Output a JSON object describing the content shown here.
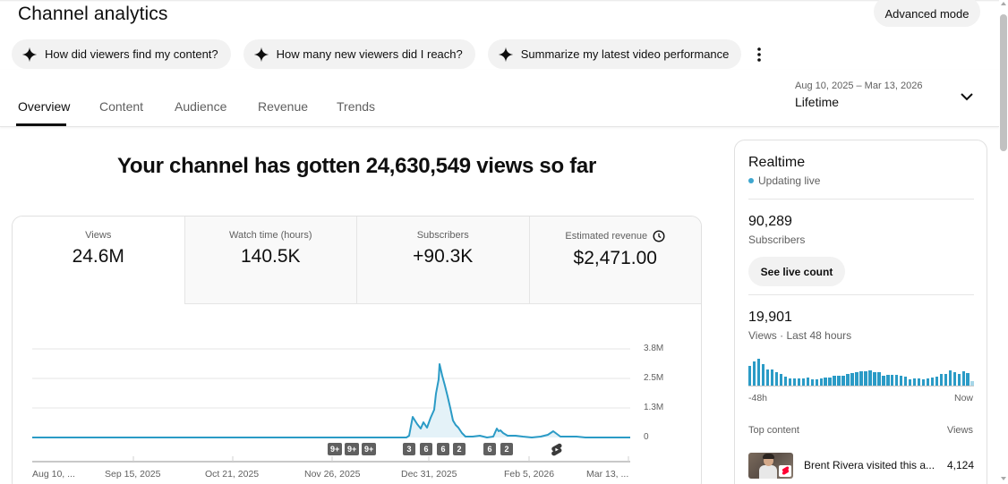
{
  "header": {
    "title": "Channel analytics",
    "advanced_mode_label": "Advanced mode"
  },
  "chips": [
    {
      "icon": "sparkle-icon",
      "label": "How did viewers find my content?"
    },
    {
      "icon": "sparkle-icon",
      "label": "How many new viewers did I reach?"
    },
    {
      "icon": "sparkle-icon",
      "label": "Summarize my latest video performance"
    }
  ],
  "more_icon": "more-vert-icon",
  "tabs": [
    {
      "label": "Overview",
      "active": true
    },
    {
      "label": "Content",
      "active": false
    },
    {
      "label": "Audience",
      "active": false
    },
    {
      "label": "Revenue",
      "active": false
    },
    {
      "label": "Trends",
      "active": false
    }
  ],
  "date_range": {
    "range": "Aug 10, 2025 – Mar 13, 2026",
    "period": "Lifetime"
  },
  "headline": "Your channel has gotten 24,630,549 views so far",
  "metrics": [
    {
      "label": "Views",
      "value": "24.6M",
      "selected": true
    },
    {
      "label": "Watch time (hours)",
      "value": "140.5K",
      "selected": false
    },
    {
      "label": "Subscribers",
      "value": "+90.3K",
      "selected": false
    },
    {
      "label": "Estimated revenue",
      "value": "$2,471.00",
      "selected": false,
      "icon": "clock-icon"
    }
  ],
  "chart_data": {
    "type": "area",
    "title": "Views",
    "xlabel": "",
    "ylabel": "Views",
    "y_ticks": [
      "0",
      "1.3M",
      "2.5M",
      "3.8M"
    ],
    "ylim": [
      0,
      3800000
    ],
    "x_tick_labels": [
      "Aug 10, ...",
      "Sep 15, 2025",
      "Oct 21, 2025",
      "Nov 26, 2025",
      "Dec 31, 2025",
      "Feb 5, 2026",
      "Mar 13, ..."
    ],
    "grid": true,
    "legend": "none",
    "color": "#3ea6cf",
    "series": [
      {
        "name": "Views",
        "x": [
          "Aug 10",
          "Dec 22",
          "Dec 24",
          "Dec 26",
          "Dec 27",
          "Dec 28",
          "Dec 29",
          "Dec 30",
          "Dec 31",
          "Jan 1",
          "Jan 2",
          "Jan 3",
          "Jan 4",
          "Jan 5",
          "Jan 6",
          "Jan 8",
          "Jan 12",
          "Jan 16",
          "Jan 20",
          "Jan 23",
          "Jan 25",
          "Jan 27",
          "Jan 29",
          "Feb 2",
          "Feb 6",
          "Feb 9",
          "Feb 12",
          "Feb 18",
          "Feb 22",
          "Feb 26",
          "Mar 3",
          "Mar 13"
        ],
        "values": [
          0,
          0,
          1200000,
          750000,
          1000000,
          800000,
          1300000,
          3100000,
          2200000,
          1700000,
          1100000,
          650000,
          600000,
          150000,
          50000,
          80000,
          60000,
          100000,
          0,
          550000,
          300000,
          200000,
          100000,
          70000,
          120000,
          70000,
          400000,
          80000,
          100000,
          30000,
          20000,
          10000
        ]
      }
    ],
    "annotations": [
      {
        "label": "9+",
        "date": "Nov 25, 2025"
      },
      {
        "label": "9+",
        "date": "Nov 29, 2025"
      },
      {
        "label": "9+",
        "date": "Dec 2, 2025"
      },
      {
        "label": "3",
        "date": "Dec 26, 2025"
      },
      {
        "label": "6",
        "date": "Dec 29, 2025"
      },
      {
        "label": "6",
        "date": "Jan 1, 2026"
      },
      {
        "label": "2",
        "date": "Jan 4, 2026"
      },
      {
        "label": "6",
        "date": "Jan 15, 2026"
      },
      {
        "label": "2",
        "date": "Jan 18, 2026"
      },
      {
        "label": "shorts",
        "date": "Feb 10, 2026"
      }
    ]
  },
  "realtime": {
    "title": "Realtime",
    "status": "Updating live",
    "status_color": "#3ea6cf",
    "subscribers_value": "90,289",
    "subscribers_label": "Subscribers",
    "live_count_label": "See live count",
    "views_value": "19,901",
    "views_label": "Views · Last 48 hours",
    "bars": [
      62,
      78,
      86,
      68,
      53,
      53,
      43,
      38,
      30,
      23,
      23,
      23,
      23,
      25,
      21,
      21,
      23,
      25,
      27,
      31,
      33,
      33,
      37,
      40,
      43,
      46,
      46,
      50,
      42,
      43,
      31,
      35,
      35,
      35,
      32,
      30,
      20,
      22,
      22,
      20,
      24,
      27,
      30,
      38,
      38,
      48,
      42,
      37,
      46,
      40,
      15
    ],
    "axis_start": "-48h",
    "axis_end": "Now",
    "top_content_label": "Top content",
    "top_views_label": "Views",
    "top_items": [
      {
        "title": "Brent Rivera visited this a...",
        "views": "4,124"
      }
    ]
  }
}
